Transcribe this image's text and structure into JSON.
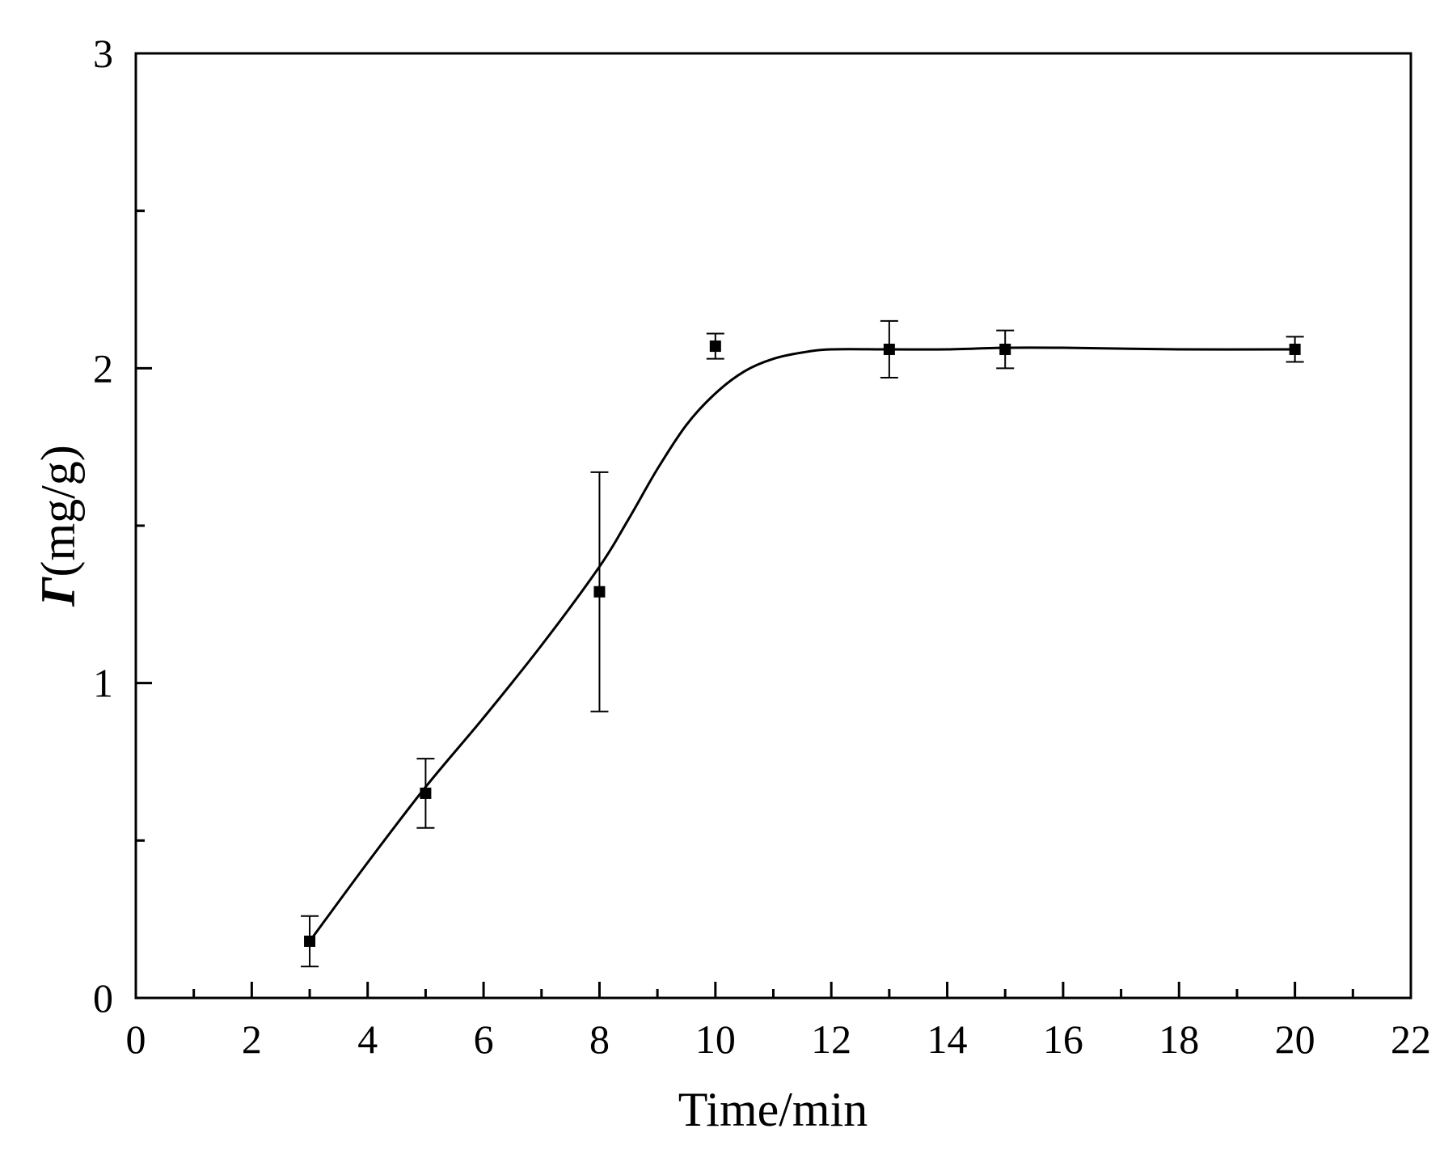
{
  "chart_data": {
    "type": "scatter",
    "xlabel": "Time/min",
    "ylabel_symbol": "Γ",
    "ylabel_unit": "(mg/g)",
    "xlim": [
      0,
      22
    ],
    "ylim": [
      0,
      3
    ],
    "x_ticks": [
      "0",
      "2",
      "4",
      "6",
      "8",
      "10",
      "12",
      "14",
      "16",
      "18",
      "20",
      "22"
    ],
    "y_ticks": [
      "0",
      "1",
      "2",
      "3"
    ],
    "x_minor_step": 1,
    "y_minor_step": 0.5,
    "grid": false,
    "legend": "none",
    "series": [
      {
        "marker": "square",
        "color": "#000000",
        "points": [
          {
            "x": 3,
            "y": 0.18,
            "err": 0.08
          },
          {
            "x": 5,
            "y": 0.65,
            "err": 0.11
          },
          {
            "x": 8,
            "y": 1.29,
            "err": 0.38
          },
          {
            "x": 10,
            "y": 2.07,
            "err": 0.04
          },
          {
            "x": 13,
            "y": 2.06,
            "err": 0.09
          },
          {
            "x": 15,
            "y": 2.06,
            "err": 0.06
          },
          {
            "x": 20,
            "y": 2.06,
            "err": 0.04
          }
        ]
      }
    ],
    "fit_curve": {
      "color": "#000000",
      "points": [
        [
          3,
          0.18
        ],
        [
          4,
          0.43
        ],
        [
          5,
          0.67
        ],
        [
          6,
          0.89
        ],
        [
          7,
          1.12
        ],
        [
          8,
          1.37
        ],
        [
          8.5,
          1.52
        ],
        [
          9,
          1.68
        ],
        [
          9.5,
          1.82
        ],
        [
          10,
          1.92
        ],
        [
          10.5,
          1.99
        ],
        [
          11,
          2.03
        ],
        [
          11.5,
          2.05
        ],
        [
          12,
          2.06
        ],
        [
          13,
          2.06
        ],
        [
          14,
          2.06
        ],
        [
          15,
          2.065
        ],
        [
          16,
          2.065
        ],
        [
          18,
          2.06
        ],
        [
          20,
          2.06
        ]
      ]
    }
  }
}
